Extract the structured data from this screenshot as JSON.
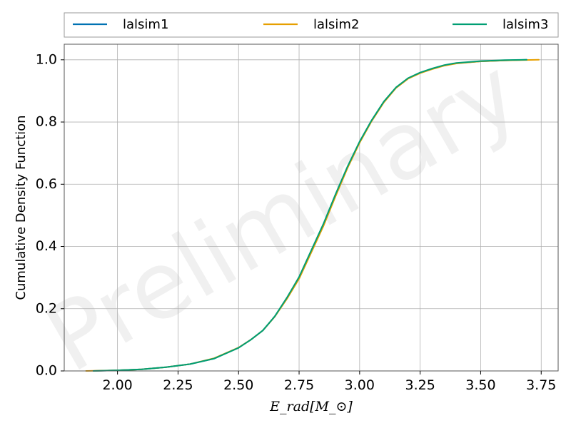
{
  "chart_data": {
    "type": "line",
    "xlabel": "E_rad[M_⊙]",
    "ylabel": "Cumulative Density Function",
    "watermark": "Preliminary",
    "xlim": [
      1.78,
      3.82
    ],
    "ylim": [
      0.0,
      1.05
    ],
    "x_ticks": [
      2.0,
      2.25,
      2.5,
      2.75,
      3.0,
      3.25,
      3.5,
      3.75
    ],
    "x_tick_labels": [
      "2.00",
      "2.25",
      "2.50",
      "2.75",
      "3.00",
      "3.25",
      "3.50",
      "3.75"
    ],
    "y_ticks": [
      0.0,
      0.2,
      0.4,
      0.6,
      0.8,
      1.0
    ],
    "y_tick_labels": [
      "0.0",
      "0.2",
      "0.4",
      "0.6",
      "0.8",
      "1.0"
    ],
    "grid": true,
    "legend_position": "top",
    "series": [
      {
        "name": "lalsim1",
        "color": "#0072b2",
        "x": [
          1.9,
          2.0,
          2.1,
          2.2,
          2.3,
          2.4,
          2.5,
          2.55,
          2.6,
          2.65,
          2.7,
          2.75,
          2.8,
          2.85,
          2.9,
          2.95,
          3.0,
          3.05,
          3.1,
          3.15,
          3.2,
          3.25,
          3.3,
          3.35,
          3.4,
          3.5,
          3.6,
          3.69
        ],
        "y": [
          0.0,
          0.002,
          0.005,
          0.012,
          0.022,
          0.04,
          0.075,
          0.1,
          0.13,
          0.175,
          0.235,
          0.3,
          0.385,
          0.47,
          0.565,
          0.655,
          0.735,
          0.805,
          0.865,
          0.91,
          0.94,
          0.958,
          0.971,
          0.982,
          0.989,
          0.995,
          0.998,
          1.0
        ]
      },
      {
        "name": "lalsim2",
        "color": "#e69f00",
        "x": [
          1.87,
          2.0,
          2.1,
          2.2,
          2.3,
          2.4,
          2.5,
          2.55,
          2.6,
          2.65,
          2.7,
          2.75,
          2.8,
          2.85,
          2.9,
          2.95,
          3.0,
          3.05,
          3.1,
          3.15,
          3.2,
          3.25,
          3.3,
          3.35,
          3.4,
          3.5,
          3.6,
          3.74
        ],
        "y": [
          0.0,
          0.002,
          0.005,
          0.012,
          0.022,
          0.041,
          0.075,
          0.1,
          0.13,
          0.175,
          0.232,
          0.296,
          0.38,
          0.465,
          0.56,
          0.652,
          0.733,
          0.803,
          0.863,
          0.909,
          0.939,
          0.957,
          0.97,
          0.981,
          0.988,
          0.995,
          0.998,
          1.0
        ]
      },
      {
        "name": "lalsim3",
        "color": "#009e73",
        "x": [
          1.9,
          2.0,
          2.1,
          2.2,
          2.3,
          2.4,
          2.5,
          2.55,
          2.6,
          2.65,
          2.7,
          2.75,
          2.8,
          2.85,
          2.9,
          2.95,
          3.0,
          3.05,
          3.1,
          3.15,
          3.2,
          3.25,
          3.3,
          3.35,
          3.4,
          3.5,
          3.6,
          3.69
        ],
        "y": [
          0.0,
          0.002,
          0.005,
          0.012,
          0.022,
          0.04,
          0.074,
          0.1,
          0.13,
          0.176,
          0.236,
          0.302,
          0.387,
          0.472,
          0.567,
          0.657,
          0.737,
          0.806,
          0.866,
          0.911,
          0.941,
          0.959,
          0.972,
          0.983,
          0.99,
          0.996,
          0.999,
          1.0
        ]
      }
    ]
  }
}
